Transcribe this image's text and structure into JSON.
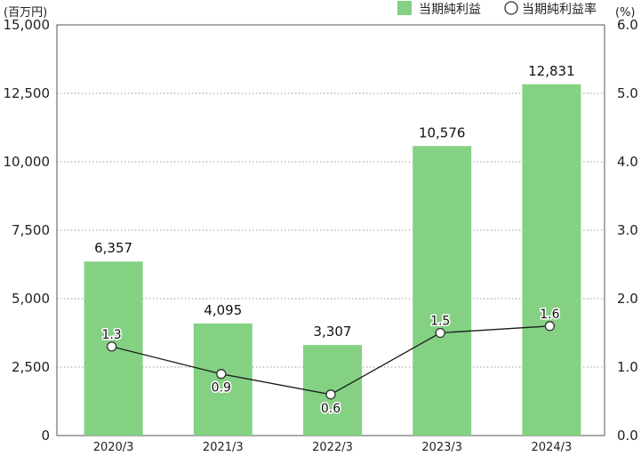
{
  "chart_data": {
    "type": "bar",
    "categories": [
      "2020/3",
      "2021/3",
      "2022/3",
      "2023/3",
      "2024/3"
    ],
    "series": [
      {
        "name": "当期純利益",
        "type": "bar",
        "axis": "left",
        "values": [
          6357,
          4095,
          3307,
          10576,
          12831
        ],
        "labels": [
          "6,357",
          "4,095",
          "3,307",
          "10,576",
          "12,831"
        ],
        "color": "#84d184"
      },
      {
        "name": "当期純利益率",
        "type": "line",
        "axis": "right",
        "values": [
          1.3,
          0.9,
          0.6,
          1.5,
          1.6
        ],
        "labels": [
          "1.3",
          "0.9",
          "0.6",
          "1.5",
          "1.6"
        ],
        "color": "#1a1a1a"
      }
    ],
    "left_axis": {
      "unit_label": "(百万円)",
      "ylim": [
        0,
        15000
      ],
      "ticks": [
        0,
        2500,
        5000,
        7500,
        10000,
        12500,
        15000
      ],
      "tick_labels": [
        "0",
        "2,500",
        "5,000",
        "7,500",
        "10,000",
        "12,500",
        "15,000"
      ]
    },
    "right_axis": {
      "unit_label": "(%)",
      "ylim": [
        0,
        6
      ],
      "ticks": [
        0,
        1,
        2,
        3,
        4,
        5,
        6
      ],
      "tick_labels": [
        "0.0",
        "1.0",
        "2.0",
        "3.0",
        "4.0",
        "5.0",
        "6.0"
      ]
    },
    "grid": "horizontal-dotted",
    "legend_position": "top-right"
  }
}
